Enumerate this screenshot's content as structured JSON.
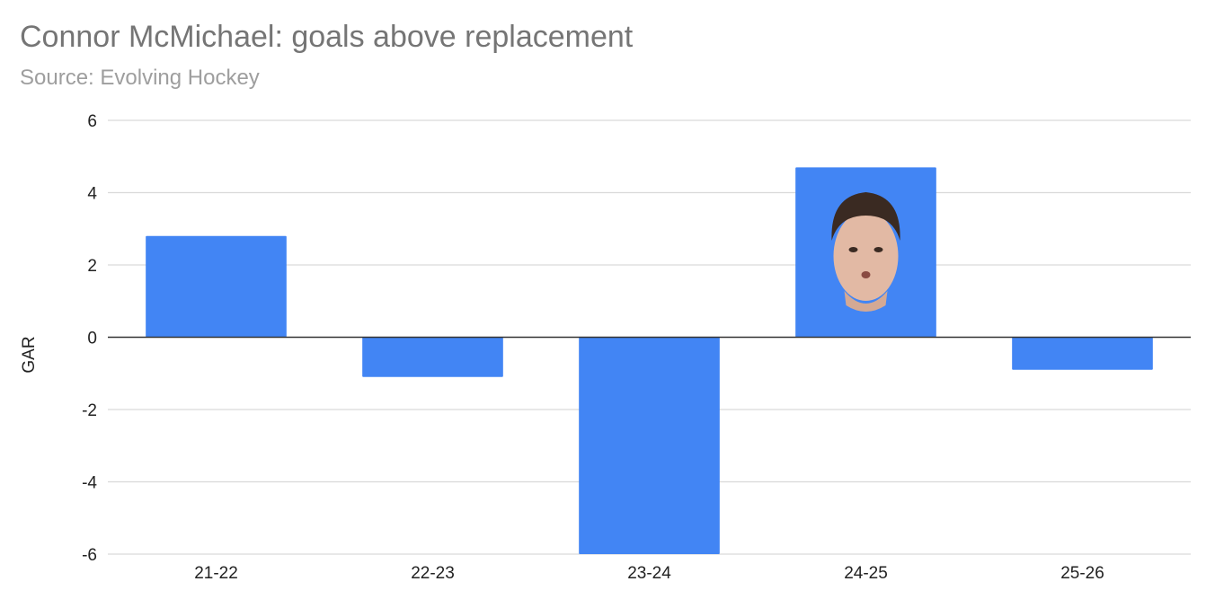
{
  "chart_data": {
    "type": "bar",
    "title": "Connor McMichael: goals above replacement",
    "subtitle": "Source: Evolving Hockey",
    "xlabel": "",
    "ylabel": "GAR",
    "categories": [
      "21-22",
      "22-23",
      "23-24",
      "24-25",
      "25-26"
    ],
    "values": [
      2.8,
      -1.1,
      -6.0,
      4.7,
      -0.9
    ],
    "ylim": [
      -6,
      6
    ],
    "yticks": [
      6,
      4,
      2,
      0,
      -2,
      -4,
      -6
    ],
    "ytick_labels": [
      "6",
      "4",
      "2",
      "0",
      "-2",
      "-4",
      "-6"
    ],
    "grid": true,
    "bar_color": "#4285f4",
    "gridline_color": "#d9d9d9",
    "zero_line_color": "#333333",
    "annotation": "player-headshot image overlaid on the 24-25 bar"
  }
}
